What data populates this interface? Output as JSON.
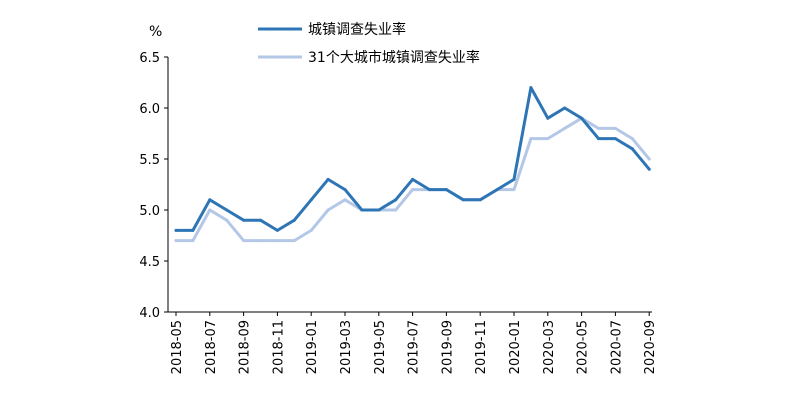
{
  "chart_data": {
    "type": "line",
    "ylabel": "%",
    "ylim": [
      4.0,
      6.5
    ],
    "yticks": [
      "4.0",
      "4.5",
      "5.0",
      "5.5",
      "6.0",
      "6.5"
    ],
    "x": [
      "2018-05",
      "2018-06",
      "2018-07",
      "2018-08",
      "2018-09",
      "2018-10",
      "2018-11",
      "2018-12",
      "2019-01",
      "2019-02",
      "2019-03",
      "2019-04",
      "2019-05",
      "2019-06",
      "2019-07",
      "2019-08",
      "2019-09",
      "2019-10",
      "2019-11",
      "2019-12",
      "2020-01",
      "2020-02",
      "2020-03",
      "2020-04",
      "2020-05",
      "2020-06",
      "2020-07",
      "2020-08",
      "2020-09"
    ],
    "xticks": [
      "2018-05",
      "2018-07",
      "2018-09",
      "2018-11",
      "2019-01",
      "2019-03",
      "2019-05",
      "2019-07",
      "2019-09",
      "2019-11",
      "2020-01",
      "2020-03",
      "2020-05",
      "2020-07",
      "2020-09"
    ],
    "grid": false,
    "legend": "top",
    "series": [
      {
        "name": "城镇调查失业率",
        "color": "#2e75b6",
        "values": [
          4.8,
          4.8,
          5.1,
          5.0,
          4.9,
          4.9,
          4.8,
          4.9,
          5.1,
          5.3,
          5.2,
          5.0,
          5.0,
          5.1,
          5.3,
          5.2,
          5.2,
          5.1,
          5.1,
          5.2,
          5.3,
          6.2,
          5.9,
          6.0,
          5.9,
          5.7,
          5.7,
          5.6,
          5.4
        ]
      },
      {
        "name": "31个大城市城镇调查失业率",
        "color": "#b4c7e7",
        "values": [
          4.7,
          4.7,
          5.0,
          4.9,
          4.7,
          4.7,
          4.7,
          4.7,
          4.8,
          5.0,
          5.1,
          5.0,
          5.0,
          5.0,
          5.2,
          5.2,
          5.2,
          5.1,
          5.1,
          5.2,
          5.2,
          5.7,
          5.7,
          5.8,
          5.9,
          5.8,
          5.8,
          5.7,
          5.5
        ]
      }
    ]
  }
}
